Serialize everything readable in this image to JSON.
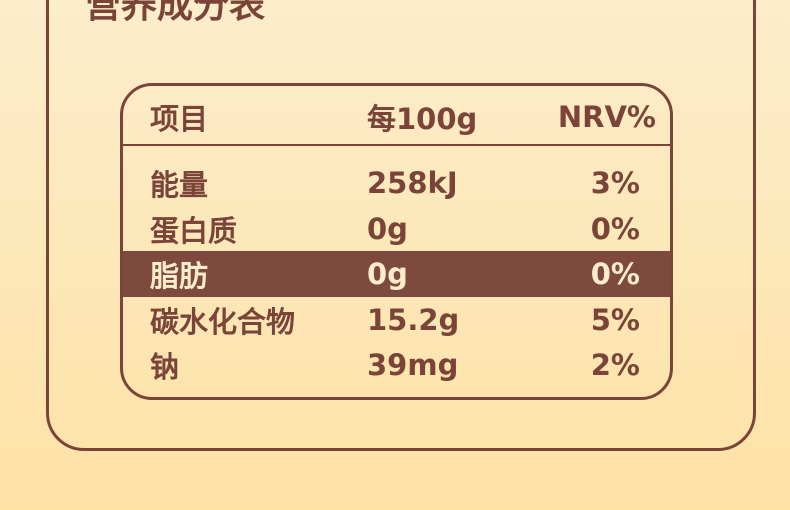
{
  "header": {
    "title": "营养成分表"
  },
  "table": {
    "columns": [
      "项目",
      "每100g",
      "NRV%"
    ],
    "rows": [
      [
        "能量",
        "258kJ",
        "3%"
      ],
      [
        "蛋白质",
        "0g",
        "0%"
      ],
      [
        "脂肪",
        "0g",
        "0%"
      ],
      [
        "碳水化合物",
        "15.2g",
        "5%"
      ],
      [
        "钠",
        "39mg",
        "2%"
      ]
    ],
    "highlight_row": 2
  }
}
